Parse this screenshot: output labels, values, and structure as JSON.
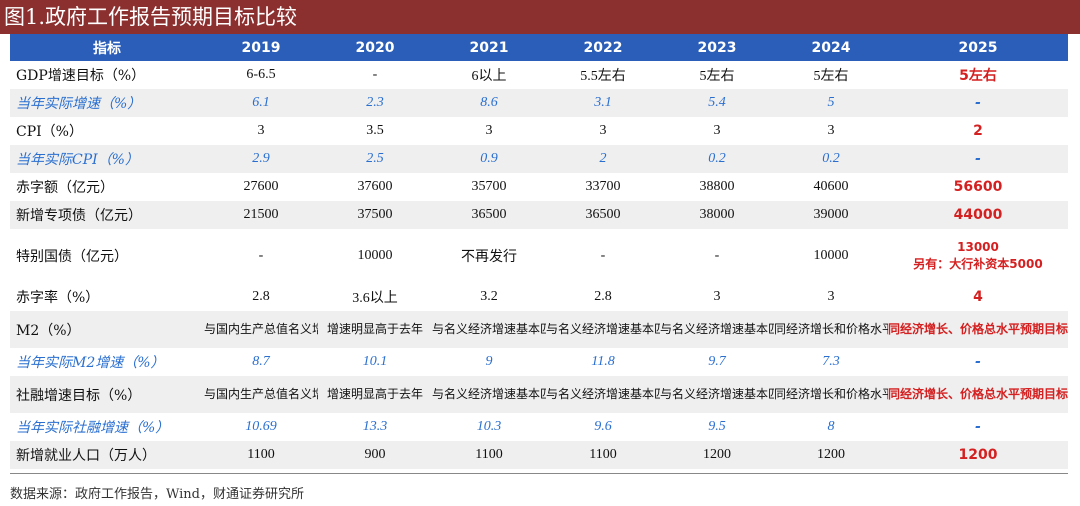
{
  "title": "图1.政府工作报告预期目标比较",
  "header": [
    "指标",
    "2019",
    "2020",
    "2021",
    "2022",
    "2023",
    "2024",
    "2025"
  ],
  "rows": [
    {
      "label": "GDP增速目标（%）",
      "values": [
        "6-6.5",
        "-",
        "6以上",
        "5.5左右",
        "5左右",
        "5左右",
        "5左右"
      ]
    },
    {
      "label": "当年实际增速（%）",
      "values": [
        "6.1",
        "2.3",
        "8.6",
        "3.1",
        "5.4",
        "5",
        "-"
      ]
    },
    {
      "label": "CPI（%）",
      "values": [
        "3",
        "3.5",
        "3",
        "3",
        "3",
        "3",
        "2"
      ]
    },
    {
      "label": "当年实际CPI（%）",
      "values": [
        "2.9",
        "2.5",
        "0.9",
        "2",
        "0.2",
        "0.2",
        "-"
      ]
    },
    {
      "label": "赤字额（亿元）",
      "values": [
        "27600",
        "37600",
        "35700",
        "33700",
        "38800",
        "40600",
        "56600"
      ]
    },
    {
      "label": "新增专项债（亿元）",
      "values": [
        "21500",
        "37500",
        "36500",
        "36500",
        "38000",
        "39000",
        "44000"
      ]
    },
    {
      "label": "特别国债（亿元）",
      "values": [
        "-",
        "10000",
        "不再发行",
        "-",
        "-",
        "10000"
      ],
      "last_value": "13000",
      "last_note": "另有：大行补资本5000"
    },
    {
      "label": "赤字率（%）",
      "values": [
        "2.8",
        "3.6以上",
        "3.2",
        "2.8",
        "3",
        "3",
        "4"
      ]
    },
    {
      "label": "M2（%）",
      "values": [
        "与国内生产总值名义增速相匹配",
        "增速明显高于去年",
        "与名义经济增速基本匹配",
        "与名义经济增速基本匹配",
        "与名义经济增速基本匹配",
        "同经济增长和价格水平预期目标相匹配",
        "同经济增长、价格总水平预期目标相匹配"
      ]
    },
    {
      "label": "当年实际M2增速（%）",
      "values": [
        "8.7",
        "10.1",
        "9",
        "11.8",
        "9.7",
        "7.3",
        "-"
      ]
    },
    {
      "label": "社融增速目标（%）",
      "values": [
        "与国内生产总值名义增速相匹配",
        "增速明显高于去年",
        "与名义经济增速基本匹配",
        "与名义经济增速基本匹配",
        "与名义经济增速基本匹配",
        "同经济增长和价格水平预期目标相匹配",
        "同经济增长、价格总水平预期目标相匹配"
      ]
    },
    {
      "label": "当年实际社融增速（%）",
      "values": [
        "10.69",
        "13.3",
        "10.3",
        "9.6",
        "9.5",
        "8",
        "-"
      ]
    },
    {
      "label": "新增就业人口（万人）",
      "values": [
        "1100",
        "900",
        "1100",
        "1100",
        "1200",
        "1200",
        "1200"
      ]
    }
  ],
  "source": "数据来源：政府工作报告，Wind，财通证券研究所",
  "colors": {
    "title_bg": "#8b2f2f",
    "header_bg": "#2b5eb8",
    "actual_text": "#2a6fd0",
    "highlight_red": "#d42020",
    "shade": "#efefef"
  }
}
